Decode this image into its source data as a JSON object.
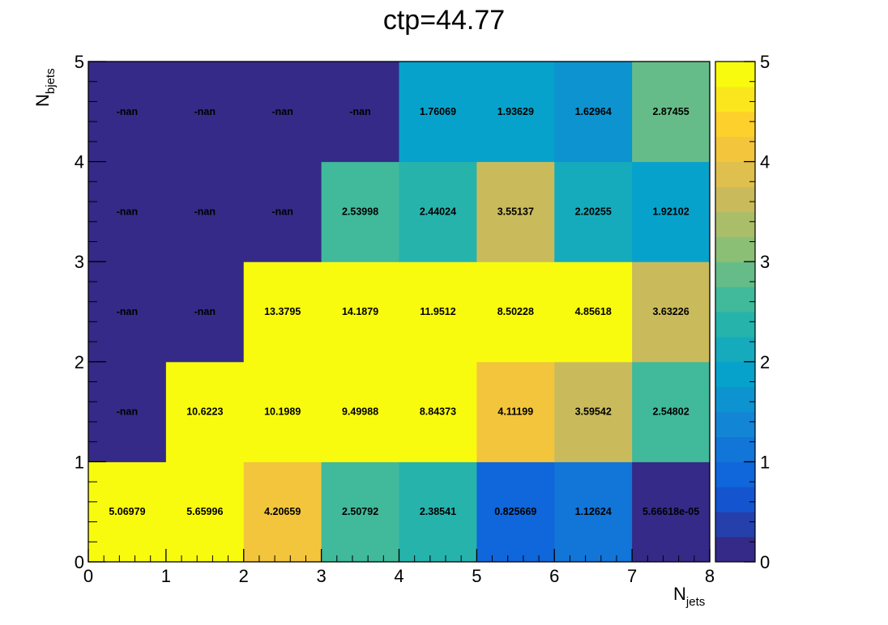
{
  "chart_data": {
    "type": "heatmap",
    "title": "ctp=44.77",
    "xlabel": {
      "main": "N",
      "sub": "jets"
    },
    "ylabel": {
      "main": "N",
      "sub": "bjets"
    },
    "xlim": [
      0,
      8
    ],
    "ylim": [
      0,
      5
    ],
    "zlim": [
      0,
      5
    ],
    "x_ticks": [
      "0",
      "1",
      "2",
      "3",
      "4",
      "5",
      "6",
      "7",
      "8"
    ],
    "y_ticks": [
      "0",
      "1",
      "2",
      "3",
      "4",
      "5"
    ],
    "z_ticks": [
      "0",
      "1",
      "2",
      "3",
      "4",
      "5"
    ],
    "colorbar_levels": 20,
    "palette": [
      "#352a87",
      "#0f5cdd",
      "#1481d6",
      "#06a4ca",
      "#2eb7a4",
      "#87bf77",
      "#d1bb59",
      "#fec832",
      "#f9fb0e"
    ],
    "cells": [
      {
        "x": 0,
        "y": 0,
        "value": 5.06979,
        "label": "5.06979"
      },
      {
        "x": 1,
        "y": 0,
        "value": 5.65996,
        "label": "5.65996"
      },
      {
        "x": 2,
        "y": 0,
        "value": 4.20659,
        "label": "4.20659"
      },
      {
        "x": 3,
        "y": 0,
        "value": 2.50792,
        "label": "2.50792"
      },
      {
        "x": 4,
        "y": 0,
        "value": 2.38541,
        "label": "2.38541"
      },
      {
        "x": 5,
        "y": 0,
        "value": 0.825669,
        "label": "0.825669"
      },
      {
        "x": 6,
        "y": 0,
        "value": 1.12624,
        "label": "1.12624"
      },
      {
        "x": 7,
        "y": 0,
        "value": 5.66618e-05,
        "label": "5.66618e-05"
      },
      {
        "x": 0,
        "y": 1,
        "value": null,
        "label": "-nan"
      },
      {
        "x": 1,
        "y": 1,
        "value": 10.6223,
        "label": "10.6223"
      },
      {
        "x": 2,
        "y": 1,
        "value": 10.1989,
        "label": "10.1989"
      },
      {
        "x": 3,
        "y": 1,
        "value": 9.49988,
        "label": "9.49988"
      },
      {
        "x": 4,
        "y": 1,
        "value": 8.84373,
        "label": "8.84373"
      },
      {
        "x": 5,
        "y": 1,
        "value": 4.11199,
        "label": "4.11199"
      },
      {
        "x": 6,
        "y": 1,
        "value": 3.59542,
        "label": "3.59542"
      },
      {
        "x": 7,
        "y": 1,
        "value": 2.54802,
        "label": "2.54802"
      },
      {
        "x": 0,
        "y": 2,
        "value": null,
        "label": "-nan"
      },
      {
        "x": 1,
        "y": 2,
        "value": null,
        "label": "-nan"
      },
      {
        "x": 2,
        "y": 2,
        "value": 13.3795,
        "label": "13.3795"
      },
      {
        "x": 3,
        "y": 2,
        "value": 14.1879,
        "label": "14.1879"
      },
      {
        "x": 4,
        "y": 2,
        "value": 11.9512,
        "label": "11.9512"
      },
      {
        "x": 5,
        "y": 2,
        "value": 8.50228,
        "label": "8.50228"
      },
      {
        "x": 6,
        "y": 2,
        "value": 4.85618,
        "label": "4.85618"
      },
      {
        "x": 7,
        "y": 2,
        "value": 3.63226,
        "label": "3.63226"
      },
      {
        "x": 0,
        "y": 3,
        "value": null,
        "label": "-nan"
      },
      {
        "x": 1,
        "y": 3,
        "value": null,
        "label": "-nan"
      },
      {
        "x": 2,
        "y": 3,
        "value": null,
        "label": "-nan"
      },
      {
        "x": 3,
        "y": 3,
        "value": 2.53998,
        "label": "2.53998"
      },
      {
        "x": 4,
        "y": 3,
        "value": 2.44024,
        "label": "2.44024"
      },
      {
        "x": 5,
        "y": 3,
        "value": 3.55137,
        "label": "3.55137"
      },
      {
        "x": 6,
        "y": 3,
        "value": 2.20255,
        "label": "2.20255"
      },
      {
        "x": 7,
        "y": 3,
        "value": 1.92102,
        "label": "1.92102"
      },
      {
        "x": 0,
        "y": 4,
        "value": null,
        "label": "-nan"
      },
      {
        "x": 1,
        "y": 4,
        "value": null,
        "label": "-nan"
      },
      {
        "x": 2,
        "y": 4,
        "value": null,
        "label": "-nan"
      },
      {
        "x": 3,
        "y": 4,
        "value": null,
        "label": "-nan"
      },
      {
        "x": 4,
        "y": 4,
        "value": 1.76069,
        "label": "1.76069"
      },
      {
        "x": 5,
        "y": 4,
        "value": 1.93629,
        "label": "1.93629"
      },
      {
        "x": 6,
        "y": 4,
        "value": 1.62964,
        "label": "1.62964"
      },
      {
        "x": 7,
        "y": 4,
        "value": 2.87455,
        "label": "2.87455"
      }
    ]
  }
}
